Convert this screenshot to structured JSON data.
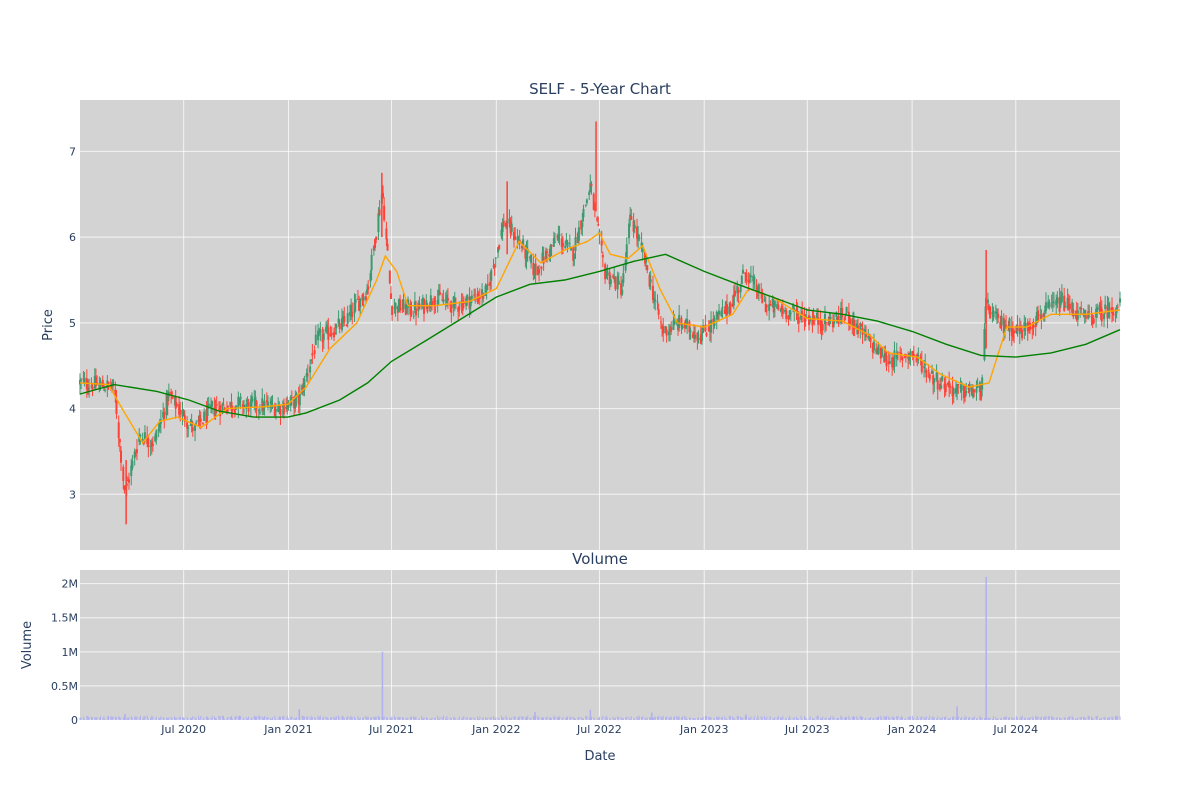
{
  "chart_data": [
    {
      "type": "candlestick",
      "title": "SELF - 5-Year Chart",
      "xlabel": "",
      "ylabel": "Price",
      "ylim": [
        2.35,
        7.6
      ],
      "yticks": [
        3,
        4,
        5,
        6,
        7
      ],
      "grid": true,
      "background": "#d3d3d3",
      "colors": {
        "up": "#3d9970",
        "down": "#ff4136",
        "ma_short": "#ffa500",
        "ma_long": "#008000"
      },
      "key_points": [
        [
          "2020-01-01",
          4.3
        ],
        [
          "2020-03-01",
          4.25
        ],
        [
          "2020-03-20",
          3.0
        ],
        [
          "2020-04-15",
          3.7
        ],
        [
          "2020-05-10",
          3.6
        ],
        [
          "2020-06-05",
          4.15
        ],
        [
          "2020-07-20",
          3.75
        ],
        [
          "2020-08-20",
          4.0
        ],
        [
          "2020-10-01",
          4.05
        ],
        [
          "2020-12-20",
          4.02
        ],
        [
          "2021-01-20",
          4.1
        ],
        [
          "2021-02-20",
          4.8
        ],
        [
          "2021-04-10",
          5.0
        ],
        [
          "2021-05-20",
          5.4
        ],
        [
          "2021-06-15",
          6.55
        ],
        [
          "2021-07-01",
          5.2
        ],
        [
          "2021-08-15",
          5.15
        ],
        [
          "2021-09-15",
          5.3
        ],
        [
          "2021-10-20",
          5.2
        ],
        [
          "2021-12-15",
          5.35
        ],
        [
          "2022-01-15",
          6.2
        ],
        [
          "2022-02-15",
          5.9
        ],
        [
          "2022-03-10",
          5.6
        ],
        [
          "2022-04-20",
          6.0
        ],
        [
          "2022-05-15",
          5.8
        ],
        [
          "2022-06-15",
          6.6
        ],
        [
          "2022-07-10",
          5.6
        ],
        [
          "2022-08-10",
          5.4
        ],
        [
          "2022-08-25",
          6.25
        ],
        [
          "2022-09-20",
          5.7
        ],
        [
          "2022-10-20",
          4.9
        ],
        [
          "2022-11-20",
          5.0
        ],
        [
          "2022-12-25",
          4.85
        ],
        [
          "2023-02-15",
          5.2
        ],
        [
          "2023-03-15",
          5.6
        ],
        [
          "2023-04-20",
          5.2
        ],
        [
          "2023-06-15",
          5.1
        ],
        [
          "2023-08-01",
          5.0
        ],
        [
          "2023-09-10",
          5.1
        ],
        [
          "2023-10-15",
          4.8
        ],
        [
          "2023-11-20",
          4.55
        ],
        [
          "2024-01-01",
          4.65
        ],
        [
          "2024-02-10",
          4.35
        ],
        [
          "2024-03-20",
          4.2
        ],
        [
          "2024-05-01",
          4.2
        ],
        [
          "2024-05-10",
          5.2
        ],
        [
          "2024-06-01",
          5.0
        ],
        [
          "2024-07-10",
          4.9
        ],
        [
          "2024-08-15",
          5.1
        ],
        [
          "2024-09-20",
          5.25
        ],
        [
          "2024-11-01",
          5.05
        ],
        [
          "2024-12-31",
          5.2
        ]
      ],
      "ma_short_points": [
        [
          "2020-01-01",
          4.3
        ],
        [
          "2020-02-20",
          4.28
        ],
        [
          "2020-03-15",
          4.0
        ],
        [
          "2020-04-20",
          3.6
        ],
        [
          "2020-05-20",
          3.85
        ],
        [
          "2020-06-20",
          3.9
        ],
        [
          "2020-08-01",
          3.78
        ],
        [
          "2020-09-15",
          4.0
        ],
        [
          "2020-11-15",
          4.02
        ],
        [
          "2020-12-31",
          4.05
        ],
        [
          "2021-02-01",
          4.25
        ],
        [
          "2021-03-15",
          4.7
        ],
        [
          "2021-05-01",
          5.0
        ],
        [
          "2021-06-05",
          5.5
        ],
        [
          "2021-06-20",
          5.78
        ],
        [
          "2021-07-10",
          5.6
        ],
        [
          "2021-07-30",
          5.2
        ],
        [
          "2021-09-15",
          5.2
        ],
        [
          "2021-11-15",
          5.25
        ],
        [
          "2022-01-01",
          5.4
        ],
        [
          "2022-02-10",
          5.95
        ],
        [
          "2022-03-20",
          5.7
        ],
        [
          "2022-05-01",
          5.85
        ],
        [
          "2022-06-10",
          5.95
        ],
        [
          "2022-07-01",
          6.05
        ],
        [
          "2022-07-20",
          5.8
        ],
        [
          "2022-08-20",
          5.75
        ],
        [
          "2022-09-15",
          5.9
        ],
        [
          "2022-10-15",
          5.4
        ],
        [
          "2022-11-15",
          5.0
        ],
        [
          "2023-01-01",
          4.95
        ],
        [
          "2023-02-20",
          5.1
        ],
        [
          "2023-03-20",
          5.4
        ],
        [
          "2023-05-01",
          5.3
        ],
        [
          "2023-07-01",
          5.05
        ],
        [
          "2023-09-01",
          5.02
        ],
        [
          "2023-10-20",
          4.85
        ],
        [
          "2023-11-20",
          4.65
        ],
        [
          "2024-01-10",
          4.6
        ],
        [
          "2024-02-20",
          4.4
        ],
        [
          "2024-04-10",
          4.25
        ],
        [
          "2024-05-15",
          4.3
        ],
        [
          "2024-06-15",
          4.95
        ],
        [
          "2024-07-20",
          4.95
        ],
        [
          "2024-09-01",
          5.1
        ],
        [
          "2024-11-01",
          5.1
        ],
        [
          "2024-12-31",
          5.15
        ]
      ],
      "ma_long_points": [
        [
          "2020-01-01",
          4.17
        ],
        [
          "2020-03-01",
          4.28
        ],
        [
          "2020-05-15",
          4.2
        ],
        [
          "2020-07-10",
          4.1
        ],
        [
          "2020-09-01",
          3.97
        ],
        [
          "2020-11-01",
          3.9
        ],
        [
          "2020-12-31",
          3.9
        ],
        [
          "2021-02-01",
          3.95
        ],
        [
          "2021-04-01",
          4.1
        ],
        [
          "2021-05-20",
          4.3
        ],
        [
          "2021-07-01",
          4.55
        ],
        [
          "2021-09-01",
          4.8
        ],
        [
          "2021-11-01",
          5.05
        ],
        [
          "2022-01-01",
          5.3
        ],
        [
          "2022-03-01",
          5.45
        ],
        [
          "2022-05-01",
          5.5
        ],
        [
          "2022-07-01",
          5.6
        ],
        [
          "2022-09-01",
          5.72
        ],
        [
          "2022-10-25",
          5.8
        ],
        [
          "2023-01-01",
          5.6
        ],
        [
          "2023-03-01",
          5.45
        ],
        [
          "2023-05-01",
          5.3
        ],
        [
          "2023-07-01",
          5.15
        ],
        [
          "2023-09-01",
          5.1
        ],
        [
          "2023-11-01",
          5.02
        ],
        [
          "2024-01-01",
          4.9
        ],
        [
          "2024-03-01",
          4.75
        ],
        [
          "2024-05-01",
          4.62
        ],
        [
          "2024-07-01",
          4.6
        ],
        [
          "2024-09-01",
          4.65
        ],
        [
          "2024-11-01",
          4.75
        ],
        [
          "2024-12-31",
          4.92
        ]
      ]
    },
    {
      "type": "bar",
      "title": "Volume",
      "xlabel": "Date",
      "ylabel": "Volume",
      "ylim": [
        0,
        2200000
      ],
      "yticks": [
        0,
        500000,
        1000000,
        1500000,
        2000000
      ],
      "ytick_labels": [
        "0",
        "0.5M",
        "1M",
        "1.5M",
        "2M"
      ],
      "color": "#b0b0f0",
      "baseline": 40000,
      "spikes": [
        [
          "2021-06-15",
          1000000
        ],
        [
          "2024-05-10",
          2100000
        ],
        [
          "2024-03-20",
          200000
        ],
        [
          "2021-01-20",
          160000
        ],
        [
          "2022-06-15",
          150000
        ],
        [
          "2022-03-10",
          120000
        ],
        [
          "2022-10-01",
          110000
        ],
        [
          "2020-03-20",
          90000
        ],
        [
          "2023-03-15",
          80000
        ]
      ]
    }
  ],
  "x_axis": {
    "range": [
      "2020-01-01",
      "2024-12-31"
    ],
    "ticks": [
      {
        "date": "2020-07-01",
        "label": "Jul 2020"
      },
      {
        "date": "2021-01-01",
        "label": "Jan 2021"
      },
      {
        "date": "2021-07-01",
        "label": "Jul 2021"
      },
      {
        "date": "2022-01-01",
        "label": "Jan 2022"
      },
      {
        "date": "2022-07-01",
        "label": "Jul 2022"
      },
      {
        "date": "2023-01-01",
        "label": "Jan 2023"
      },
      {
        "date": "2023-07-01",
        "label": "Jul 2023"
      },
      {
        "date": "2024-01-01",
        "label": "Jan 2024"
      },
      {
        "date": "2024-07-01",
        "label": "Jul 2024"
      }
    ]
  }
}
